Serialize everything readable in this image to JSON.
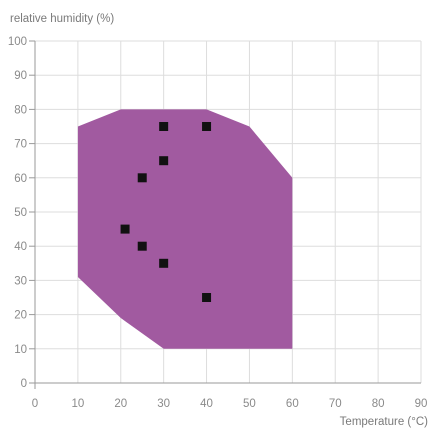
{
  "chart_data": {
    "type": "scatter",
    "title": "",
    "ylabel": "relative humidity (%)",
    "xlabel": "Temperature (°C)",
    "xlim": [
      0,
      90
    ],
    "ylim": [
      0,
      100
    ],
    "x_ticks": [
      0,
      10,
      20,
      30,
      40,
      50,
      60,
      70,
      80,
      90
    ],
    "y_ticks": [
      0,
      10,
      20,
      30,
      40,
      50,
      60,
      70,
      80,
      90,
      100
    ],
    "grid": true,
    "colors": {
      "region": "#a15aa0",
      "marker": "#111111",
      "grid": "#dddddd",
      "axis": "#9a9a9a"
    },
    "region": {
      "polygon": [
        [
          10,
          75
        ],
        [
          20,
          80
        ],
        [
          40,
          80
        ],
        [
          50,
          75
        ],
        [
          60,
          60
        ],
        [
          60,
          10
        ],
        [
          30,
          10
        ],
        [
          20,
          19
        ],
        [
          10,
          31
        ]
      ]
    },
    "series": [
      {
        "points": [
          [
            30,
            75
          ],
          [
            40,
            75
          ],
          [
            30,
            65
          ],
          [
            25,
            60
          ],
          [
            21,
            45
          ],
          [
            25,
            40
          ],
          [
            30,
            35
          ],
          [
            40,
            25
          ]
        ]
      }
    ]
  }
}
